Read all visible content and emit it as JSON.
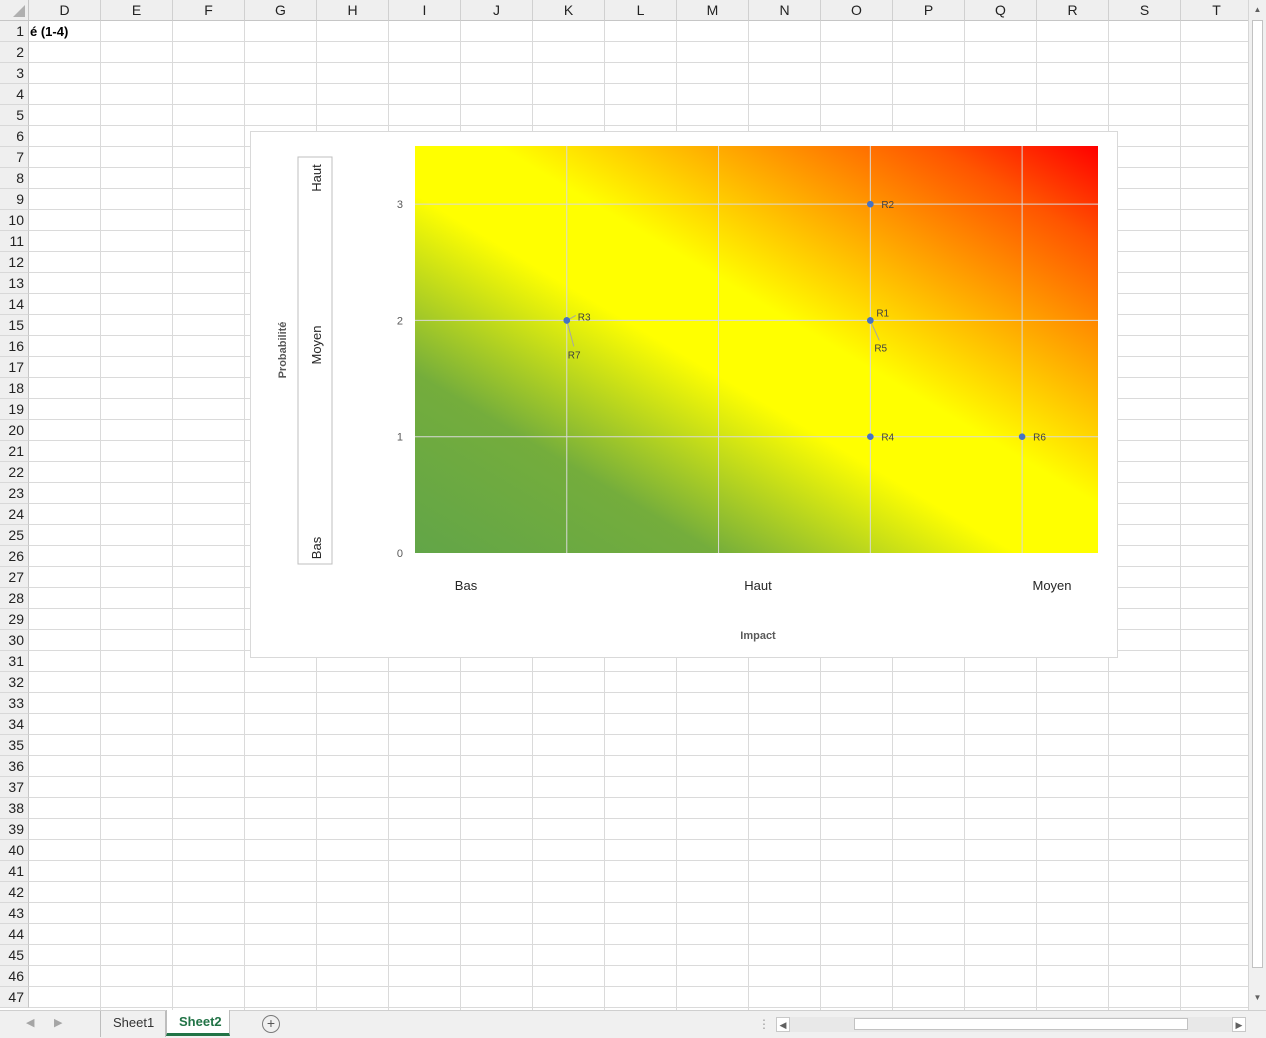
{
  "columns": [
    "D",
    "E",
    "F",
    "G",
    "H",
    "I",
    "J",
    "K",
    "L",
    "M",
    "N",
    "O",
    "P",
    "Q",
    "R",
    "S",
    "T"
  ],
  "rows": [
    "1",
    "2",
    "3",
    "4",
    "5",
    "6",
    "7",
    "8",
    "9",
    "10",
    "11",
    "12",
    "13",
    "14",
    "15",
    "16",
    "17",
    "18",
    "19",
    "20",
    "21",
    "22",
    "23",
    "24",
    "25",
    "26",
    "27",
    "28",
    "29",
    "30",
    "31",
    "32",
    "33",
    "34",
    "35",
    "36",
    "37",
    "38",
    "39",
    "40",
    "41",
    "42",
    "43",
    "44",
    "45",
    "46",
    "47"
  ],
  "cells": {
    "D1": "é (1-4)"
  },
  "tabs": {
    "sheet1": "Sheet1",
    "sheet2": "Sheet2"
  },
  "icons": {
    "add_sheet": "plus-circle-icon",
    "scroll_left": "triangle-left-icon",
    "scroll_right": "triangle-right-icon"
  },
  "chart_data": {
    "type": "scatter",
    "background": "gradient green (bottom-left) to yellow to red (top-right)",
    "colors": {
      "green": "#6aaa44",
      "yellow": "#ffff00",
      "orange": "#ff9900",
      "red": "#ff0000",
      "marker": "#4472c4"
    },
    "xlabel": "Impact",
    "ylabel": "Probabilité",
    "xlim": [
      0,
      4.5
    ],
    "ylim": [
      0,
      3.5
    ],
    "yticks": [
      "0",
      "1",
      "2",
      "3"
    ],
    "x_category_labels": [
      "Bas",
      "Haut",
      "Moyen"
    ],
    "y_category_labels": [
      "Haut",
      "Moyen",
      "Bas"
    ],
    "grid": true,
    "points": [
      {
        "label": "R1",
        "x": 3,
        "y": 2
      },
      {
        "label": "R2",
        "x": 3,
        "y": 3
      },
      {
        "label": "R3",
        "x": 1,
        "y": 2
      },
      {
        "label": "R4",
        "x": 3,
        "y": 1
      },
      {
        "label": "R5",
        "x": 3,
        "y": 2
      },
      {
        "label": "R6",
        "x": 4,
        "y": 1
      },
      {
        "label": "R7",
        "x": 1,
        "y": 2
      }
    ]
  }
}
